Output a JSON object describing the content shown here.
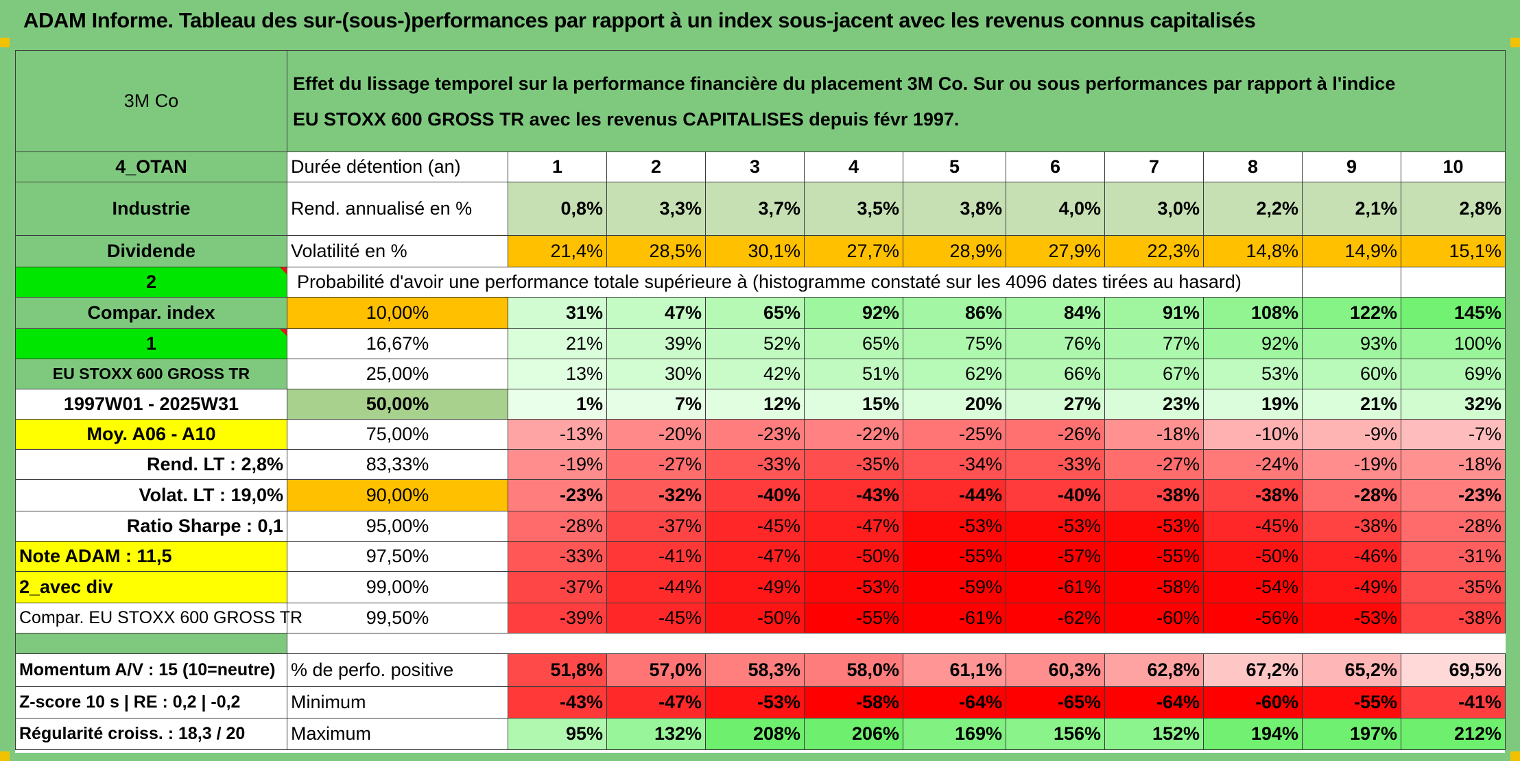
{
  "title": "ADAM Informe. Tableau des sur-(sous-)performances par rapport à un index sous-jacent avec les revenus connus capitalisés",
  "left": {
    "company": "3M Co",
    "code": "4_OTAN",
    "sector": "Industrie",
    "dividend": "Dividende",
    "num1": "2",
    "compar_index": "Compar. index",
    "num2": "1",
    "index_name": "EU STOXX 600 GROSS TR",
    "period": "1997W01 - 2025W31",
    "moy": "Moy. A06 - A10",
    "rend_lt": "Rend. LT :    2,8%",
    "volat_lt": "Volat. LT :   19,0%",
    "sharpe": "Ratio Sharpe :    0,1",
    "note": "Note ADAM : 11,5",
    "avec_div": "2_avec div",
    "compar_full": "Compar. EU STOXX 600 GROSS TR",
    "momentum": "Momentum A/V : 15 (10=neutre)",
    "zscore": "Z-score 10 s | RE : 0,2 | -0,2",
    "regularite": "Régularité croiss. : 18,3 / 20"
  },
  "header": {
    "desc_line1": "Effet du lissage temporel sur la performance financière du placement 3M Co. Sur ou sous performances par rapport à l'indice",
    "desc_line2": "EU STOXX 600 GROSS TR avec les revenus CAPITALISES depuis févr 1997.",
    "duree_label": "Durée détention (an)",
    "years": [
      "1",
      "2",
      "3",
      "4",
      "5",
      "6",
      "7",
      "8",
      "9",
      "10"
    ],
    "rend_label": "Rend. annualisé en %",
    "rend": [
      "0,8%",
      "3,3%",
      "3,7%",
      "3,5%",
      "3,8%",
      "4,0%",
      "3,0%",
      "2,2%",
      "2,1%",
      "2,8%"
    ],
    "vol_label": "Volatilité en %",
    "vol": [
      "21,4%",
      "28,5%",
      "30,1%",
      "27,7%",
      "28,9%",
      "27,9%",
      "22,3%",
      "14,8%",
      "14,9%",
      "15,1%"
    ],
    "proba_label": "Probabilité d'avoir une performance totale supérieure à (histogramme constaté sur les 4096 dates tirées au hasard)"
  },
  "quantiles": [
    {
      "p": "10,00%",
      "v": [
        "31%",
        "47%",
        "65%",
        "92%",
        "86%",
        "84%",
        "91%",
        "108%",
        "122%",
        "145%"
      ]
    },
    {
      "p": "16,67%",
      "v": [
        "21%",
        "39%",
        "52%",
        "65%",
        "75%",
        "76%",
        "77%",
        "92%",
        "93%",
        "100%"
      ]
    },
    {
      "p": "25,00%",
      "v": [
        "13%",
        "30%",
        "42%",
        "51%",
        "62%",
        "66%",
        "67%",
        "53%",
        "60%",
        "69%"
      ]
    },
    {
      "p": "50,00%",
      "v": [
        "1%",
        "7%",
        "12%",
        "15%",
        "20%",
        "27%",
        "23%",
        "19%",
        "21%",
        "32%"
      ]
    },
    {
      "p": "75,00%",
      "v": [
        "-13%",
        "-20%",
        "-23%",
        "-22%",
        "-25%",
        "-26%",
        "-18%",
        "-10%",
        "-9%",
        "-7%"
      ]
    },
    {
      "p": "83,33%",
      "v": [
        "-19%",
        "-27%",
        "-33%",
        "-35%",
        "-34%",
        "-33%",
        "-27%",
        "-24%",
        "-19%",
        "-18%"
      ]
    },
    {
      "p": "90,00%",
      "v": [
        "-23%",
        "-32%",
        "-40%",
        "-43%",
        "-44%",
        "-40%",
        "-38%",
        "-38%",
        "-28%",
        "-23%"
      ]
    },
    {
      "p": "95,00%",
      "v": [
        "-28%",
        "-37%",
        "-45%",
        "-47%",
        "-53%",
        "-53%",
        "-53%",
        "-45%",
        "-38%",
        "-28%"
      ]
    },
    {
      "p": "97,50%",
      "v": [
        "-33%",
        "-41%",
        "-47%",
        "-50%",
        "-55%",
        "-57%",
        "-55%",
        "-50%",
        "-46%",
        "-31%"
      ]
    },
    {
      "p": "99,00%",
      "v": [
        "-37%",
        "-44%",
        "-49%",
        "-53%",
        "-59%",
        "-61%",
        "-58%",
        "-54%",
        "-49%",
        "-35%"
      ]
    },
    {
      "p": "99,50%",
      "v": [
        "-39%",
        "-45%",
        "-50%",
        "-55%",
        "-61%",
        "-62%",
        "-60%",
        "-56%",
        "-53%",
        "-38%"
      ]
    }
  ],
  "stats": {
    "pos_label": "% de perfo. positive",
    "pos": [
      "51,8%",
      "57,0%",
      "58,3%",
      "58,0%",
      "61,1%",
      "60,3%",
      "62,8%",
      "67,2%",
      "65,2%",
      "69,5%"
    ],
    "min_label": "Minimum",
    "min": [
      "-43%",
      "-47%",
      "-53%",
      "-58%",
      "-64%",
      "-65%",
      "-64%",
      "-60%",
      "-55%",
      "-41%"
    ],
    "max_label": "Maximum",
    "max": [
      "95%",
      "132%",
      "208%",
      "206%",
      "169%",
      "156%",
      "152%",
      "194%",
      "197%",
      "212%"
    ]
  }
}
